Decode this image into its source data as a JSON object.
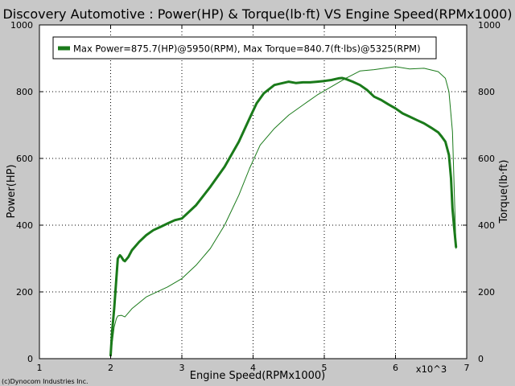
{
  "chart_data": {
    "type": "line",
    "title": "Discovery Automotive : Power(HP) & Torque(lb·ft) VS Engine Speed(RPMx1000)",
    "xlabel": "Engine Speed(RPMx1000)",
    "x_multiplier_label": "x10^3",
    "ylabel_left": "Power(HP)",
    "ylabel_right": "Torque(lb·ft)",
    "xlim": [
      1,
      7
    ],
    "ylim": [
      0,
      1000
    ],
    "x_ticks": [
      "1",
      "2",
      "3",
      "4",
      "5",
      "6",
      "7"
    ],
    "y_ticks": [
      "0",
      "200",
      "400",
      "600",
      "800",
      "1000"
    ],
    "grid": true,
    "legend_placement": "top-left",
    "legend_text": "Max Power=875.7(HP)@5950(RPM), Max Torque=840.7(ft·lbs)@5325(RPM)",
    "footer": "(c)Dynocom Industries Inc.",
    "colors": {
      "background": "#c8c8c8",
      "plot": "#ffffff",
      "series": "#1a7a1a"
    },
    "series": [
      {
        "role": "power",
        "stroke_width": 1,
        "x": [
          2.0,
          2.02,
          2.05,
          2.08,
          2.1,
          2.15,
          2.2,
          2.3,
          2.5,
          2.8,
          3.0,
          3.2,
          3.4,
          3.6,
          3.8,
          3.95,
          4.1,
          4.3,
          4.5,
          4.7,
          4.9,
          5.1,
          5.3,
          5.5,
          5.7,
          5.9,
          6.0,
          6.2,
          6.4,
          6.5,
          6.6,
          6.7,
          6.75,
          6.8,
          6.85
        ],
        "y": [
          15,
          45,
          95,
          120,
          128,
          130,
          125,
          150,
          185,
          215,
          240,
          280,
          330,
          400,
          490,
          570,
          640,
          690,
          730,
          760,
          790,
          815,
          840,
          862,
          866,
          872,
          875,
          868,
          870,
          865,
          860,
          840,
          800,
          680,
          330
        ]
      },
      {
        "role": "torque",
        "stroke_width": 3,
        "x": [
          2.0,
          2.02,
          2.05,
          2.08,
          2.1,
          2.13,
          2.15,
          2.18,
          2.2,
          2.25,
          2.3,
          2.4,
          2.5,
          2.6,
          2.7,
          2.8,
          2.9,
          3.0,
          3.2,
          3.4,
          3.6,
          3.8,
          3.95,
          4.05,
          4.15,
          4.3,
          4.5,
          4.6,
          4.7,
          4.8,
          4.9,
          5.0,
          5.1,
          5.2,
          5.25,
          5.3,
          5.4,
          5.5,
          5.6,
          5.7,
          5.8,
          5.9,
          6.0,
          6.1,
          6.2,
          6.3,
          6.4,
          6.5,
          6.6,
          6.65,
          6.7,
          6.75,
          6.78,
          6.8,
          6.82,
          6.85
        ],
        "y": [
          10,
          80,
          150,
          240,
          300,
          310,
          305,
          295,
          292,
          305,
          325,
          350,
          370,
          385,
          395,
          405,
          415,
          420,
          460,
          515,
          575,
          650,
          720,
          765,
          795,
          820,
          830,
          826,
          828,
          828,
          830,
          832,
          835,
          840,
          841,
          838,
          830,
          820,
          805,
          785,
          775,
          762,
          750,
          735,
          725,
          715,
          705,
          692,
          678,
          665,
          650,
          610,
          540,
          450,
          400,
          335
        ]
      }
    ]
  }
}
